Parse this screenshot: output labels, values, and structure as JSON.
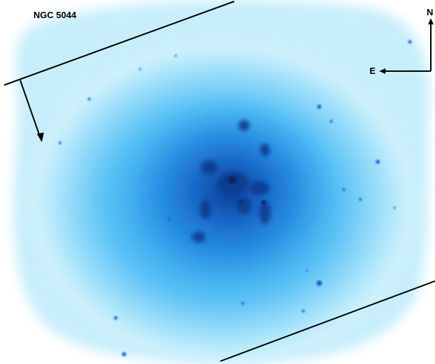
{
  "image": {
    "title": "NGC 5044",
    "compass": {
      "north": "N",
      "east": "E"
    }
  },
  "colors": {
    "background": "#ffffff",
    "halo_outer": "#c8eefc",
    "halo_mid": "#55bff5",
    "halo_inner": "#1a8ee8",
    "core": "#0b3d96",
    "annotation": "#000000"
  }
}
